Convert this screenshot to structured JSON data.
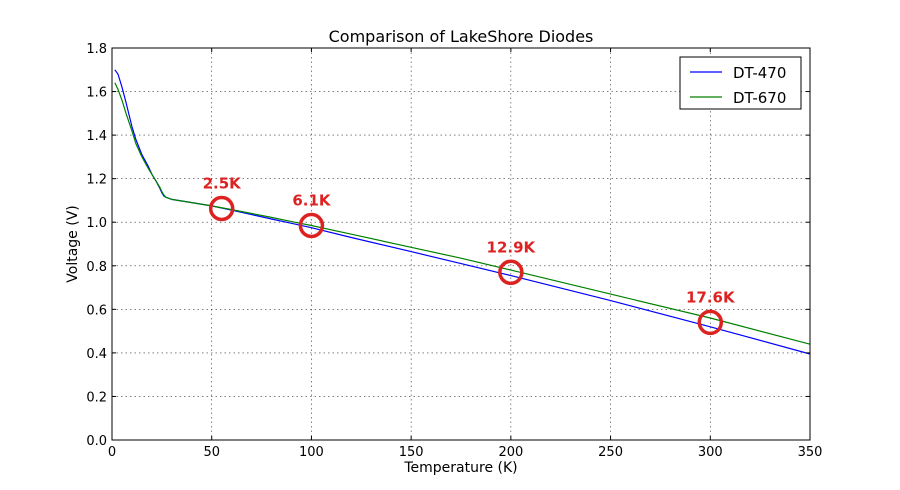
{
  "chart_data": {
    "type": "line",
    "title": "Comparison of LakeShore Diodes",
    "xlabel": "Temperature (K)",
    "ylabel": "Voltage (V)",
    "xlim": [
      0,
      350
    ],
    "ylim": [
      0,
      1.8
    ],
    "xticks": [
      0,
      50,
      100,
      150,
      200,
      250,
      300,
      350
    ],
    "yticks": [
      0.0,
      0.2,
      0.4,
      0.6,
      0.8,
      1.0,
      1.2,
      1.4,
      1.6,
      1.8
    ],
    "xtick_labels": [
      "0",
      "50",
      "100",
      "150",
      "200",
      "250",
      "300",
      "350"
    ],
    "ytick_labels": [
      "0.0",
      "0.2",
      "0.4",
      "0.6",
      "0.8",
      "1.0",
      "1.2",
      "1.4",
      "1.6",
      "1.8"
    ],
    "grid": true,
    "legend_position": "top-right",
    "series": [
      {
        "name": "DT-470",
        "color": "#0000ff",
        "x": [
          1.4,
          3,
          5,
          7,
          10,
          12,
          15,
          18,
          20,
          22,
          24,
          25,
          26,
          27,
          30,
          40,
          50,
          60,
          70,
          80,
          90,
          100,
          120,
          150,
          175,
          200,
          250,
          300,
          350
        ],
        "y": [
          1.7,
          1.68,
          1.62,
          1.55,
          1.44,
          1.38,
          1.31,
          1.26,
          1.22,
          1.19,
          1.155,
          1.135,
          1.12,
          1.115,
          1.105,
          1.09,
          1.075,
          1.055,
          1.035,
          1.015,
          0.995,
          0.975,
          0.93,
          0.865,
          0.81,
          0.755,
          0.64,
          0.52,
          0.395
        ]
      },
      {
        "name": "DT-670",
        "color": "#008000",
        "x": [
          1.4,
          3,
          5,
          7,
          10,
          12,
          15,
          18,
          20,
          22,
          24,
          25,
          26,
          27,
          30,
          40,
          50,
          60,
          70,
          80,
          90,
          100,
          120,
          150,
          175,
          200,
          250,
          300,
          350
        ],
        "y": [
          1.64,
          1.61,
          1.56,
          1.5,
          1.42,
          1.36,
          1.3,
          1.25,
          1.22,
          1.19,
          1.16,
          1.14,
          1.125,
          1.115,
          1.105,
          1.09,
          1.075,
          1.058,
          1.04,
          1.022,
          1.003,
          0.985,
          0.945,
          0.885,
          0.835,
          0.78,
          0.67,
          0.56,
          0.44
        ]
      }
    ],
    "annotations": [
      {
        "text": "2.5K",
        "x": 55,
        "y": 1.063,
        "color": "#dd2222"
      },
      {
        "text": "6.1K",
        "x": 100,
        "y": 0.985,
        "color": "#dd2222"
      },
      {
        "text": "12.9K",
        "x": 200,
        "y": 0.77,
        "color": "#dd2222"
      },
      {
        "text": "17.6K",
        "x": 300,
        "y": 0.54,
        "color": "#dd2222"
      }
    ]
  }
}
